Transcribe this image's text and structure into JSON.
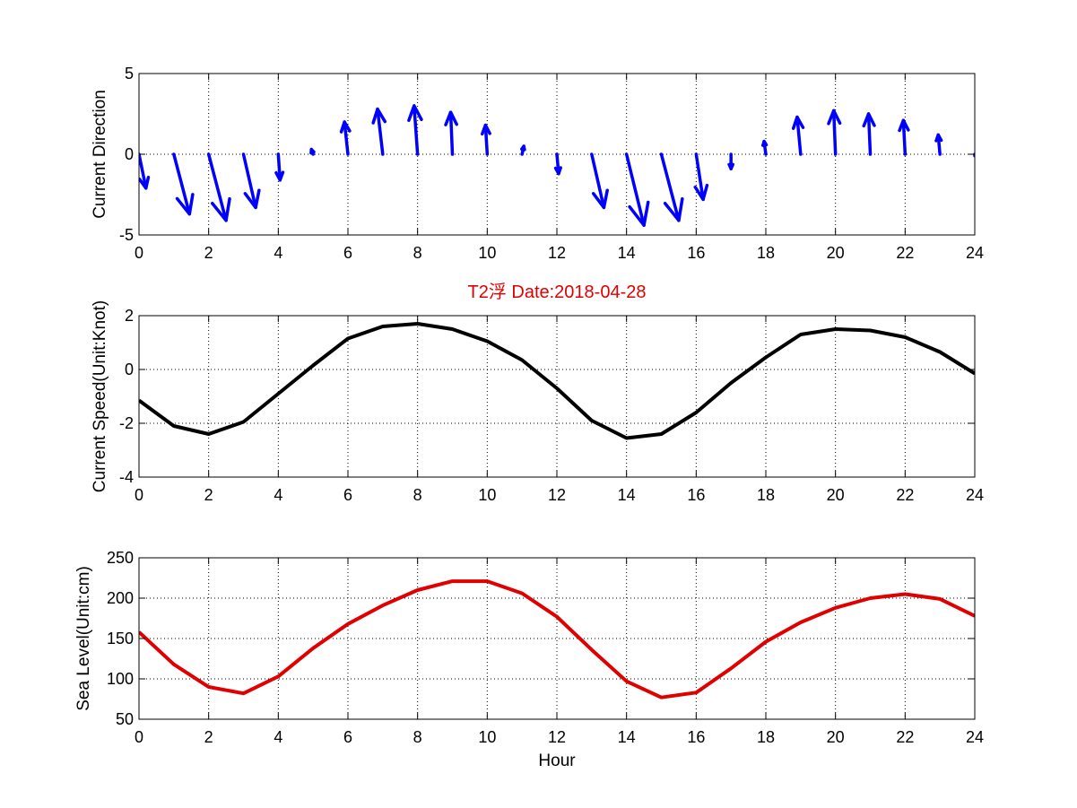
{
  "figure_title": "T2浮   Date:2018-04-28",
  "colors": {
    "direction": "#0000ff",
    "speed": "#000000",
    "sea_level": "#e00000",
    "title": "#e00000"
  },
  "chart_data": [
    {
      "type": "quiver",
      "ylabel": "Current Direction",
      "xlabel": "",
      "xlim": [
        0,
        24
      ],
      "ylim": [
        -5,
        5
      ],
      "x_ticks": [
        "0",
        "2",
        "4",
        "6",
        "8",
        "10",
        "12",
        "14",
        "16",
        "18",
        "20",
        "22",
        "24"
      ],
      "y_ticks": [
        "-5",
        "0",
        "5"
      ],
      "grid": true,
      "vectors": [
        {
          "x": 0,
          "u": 0.2,
          "v": -2.1
        },
        {
          "x": 1,
          "u": 0.45,
          "v": -3.7
        },
        {
          "x": 2,
          "u": 0.5,
          "v": -4.1
        },
        {
          "x": 3,
          "u": 0.35,
          "v": -3.3
        },
        {
          "x": 4,
          "u": 0.05,
          "v": -1.6
        },
        {
          "x": 5,
          "u": -0.05,
          "v": 0.3
        },
        {
          "x": 6,
          "u": -0.1,
          "v": 2.0
        },
        {
          "x": 7,
          "u": -0.15,
          "v": 2.8
        },
        {
          "x": 8,
          "u": -0.1,
          "v": 3.0
        },
        {
          "x": 9,
          "u": -0.05,
          "v": 2.6
        },
        {
          "x": 10,
          "u": -0.05,
          "v": 1.8
        },
        {
          "x": 11,
          "u": 0.05,
          "v": 0.5
        },
        {
          "x": 12,
          "u": 0.05,
          "v": -1.2
        },
        {
          "x": 13,
          "u": 0.35,
          "v": -3.3
        },
        {
          "x": 14,
          "u": 0.5,
          "v": -4.4
        },
        {
          "x": 15,
          "u": 0.5,
          "v": -4.1
        },
        {
          "x": 16,
          "u": 0.2,
          "v": -2.8
        },
        {
          "x": 17,
          "u": 0.0,
          "v": -0.9
        },
        {
          "x": 18,
          "u": -0.05,
          "v": 0.8
        },
        {
          "x": 19,
          "u": -0.1,
          "v": 2.3
        },
        {
          "x": 20,
          "u": -0.05,
          "v": 2.7
        },
        {
          "x": 21,
          "u": -0.05,
          "v": 2.5
        },
        {
          "x": 22,
          "u": -0.05,
          "v": 2.1
        },
        {
          "x": 23,
          "u": -0.05,
          "v": 1.2
        },
        {
          "x": 24,
          "u": 0.0,
          "v": -0.1
        }
      ]
    },
    {
      "type": "line",
      "ylabel": "Current Speed(Unit:Knot)",
      "xlabel": "",
      "xlim": [
        0,
        24
      ],
      "ylim": [
        -4,
        2
      ],
      "x_ticks": [
        "0",
        "2",
        "4",
        "6",
        "8",
        "10",
        "12",
        "14",
        "16",
        "18",
        "20",
        "22",
        "24"
      ],
      "y_ticks": [
        "-4",
        "-2",
        "0",
        "2"
      ],
      "grid": true,
      "x": [
        0,
        1,
        2,
        3,
        4,
        5,
        6,
        7,
        8,
        9,
        10,
        11,
        12,
        13,
        14,
        15,
        16,
        17,
        18,
        19,
        20,
        21,
        22,
        23,
        24
      ],
      "series": [
        {
          "values": [
            -1.15,
            -2.1,
            -2.4,
            -1.95,
            -0.9,
            0.15,
            1.15,
            1.6,
            1.7,
            1.5,
            1.05,
            0.35,
            -0.7,
            -1.9,
            -2.55,
            -2.4,
            -1.6,
            -0.5,
            0.45,
            1.3,
            1.5,
            1.45,
            1.2,
            0.65,
            -0.15
          ]
        }
      ]
    },
    {
      "type": "line",
      "ylabel": "Sea Level(Unit:cm)",
      "xlabel": "Hour",
      "xlim": [
        0,
        24
      ],
      "ylim": [
        50,
        250
      ],
      "x_ticks": [
        "0",
        "2",
        "4",
        "6",
        "8",
        "10",
        "12",
        "14",
        "16",
        "18",
        "20",
        "22",
        "24"
      ],
      "y_ticks": [
        "50",
        "100",
        "150",
        "200",
        "250"
      ],
      "grid": true,
      "x": [
        0,
        1,
        2,
        3,
        4,
        5,
        6,
        7,
        8,
        9,
        10,
        11,
        12,
        13,
        14,
        15,
        16,
        17,
        18,
        19,
        20,
        21,
        22,
        23,
        24
      ],
      "series": [
        {
          "values": [
            158,
            118,
            90,
            82,
            103,
            138,
            168,
            191,
            210,
            221,
            221,
            206,
            177,
            136,
            97,
            77,
            83,
            113,
            146,
            170,
            188,
            200,
            205,
            199,
            178
          ]
        }
      ]
    }
  ]
}
